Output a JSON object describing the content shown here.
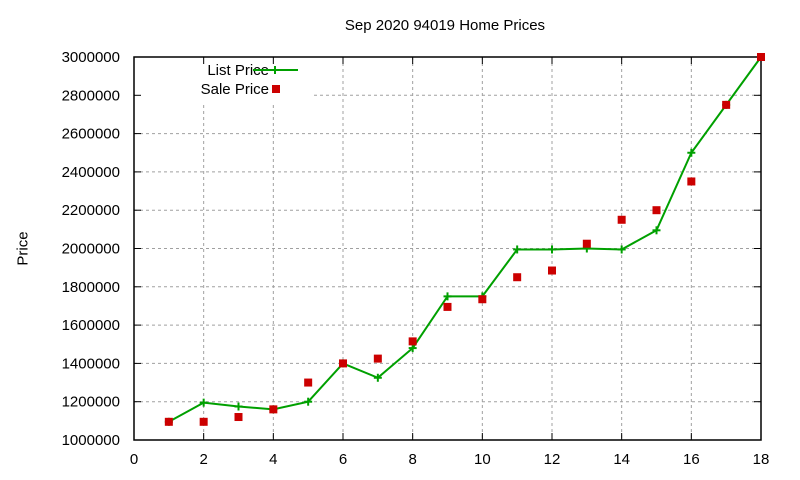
{
  "chart_data": {
    "type": "line",
    "title": "Sep 2020 94019 Home Prices",
    "xlabel": "",
    "ylabel": "Price",
    "xlim": [
      0,
      18
    ],
    "ylim": [
      1000000,
      3000000
    ],
    "xticks": [
      0,
      2,
      4,
      6,
      8,
      10,
      12,
      14,
      16,
      18
    ],
    "yticks": [
      1000000,
      1200000,
      1400000,
      1600000,
      1800000,
      2000000,
      2200000,
      2400000,
      2600000,
      2800000,
      3000000
    ],
    "grid": true,
    "legend_position": "top-left",
    "x": [
      1,
      2,
      3,
      4,
      5,
      6,
      7,
      8,
      9,
      10,
      11,
      12,
      13,
      14,
      15,
      16,
      17,
      18
    ],
    "series": [
      {
        "name": "List Price",
        "style": "linespoints",
        "marker": "plus",
        "color": "#00a000",
        "values": [
          1095000,
          1195000,
          1175000,
          1160000,
          1200000,
          1400000,
          1325000,
          1480000,
          1750000,
          1750000,
          1995000,
          1995000,
          2000000,
          1995000,
          2095000,
          2500000,
          2750000,
          3000000
        ]
      },
      {
        "name": "Sale Price",
        "style": "points",
        "marker": "square",
        "color": "#cc0000",
        "values": [
          1095000,
          1095000,
          1120000,
          1160000,
          1300000,
          1400000,
          1425000,
          1515000,
          1695000,
          1735000,
          1850000,
          1885000,
          2025000,
          2150000,
          2200000,
          2350000,
          2750000,
          3000000
        ]
      }
    ]
  }
}
